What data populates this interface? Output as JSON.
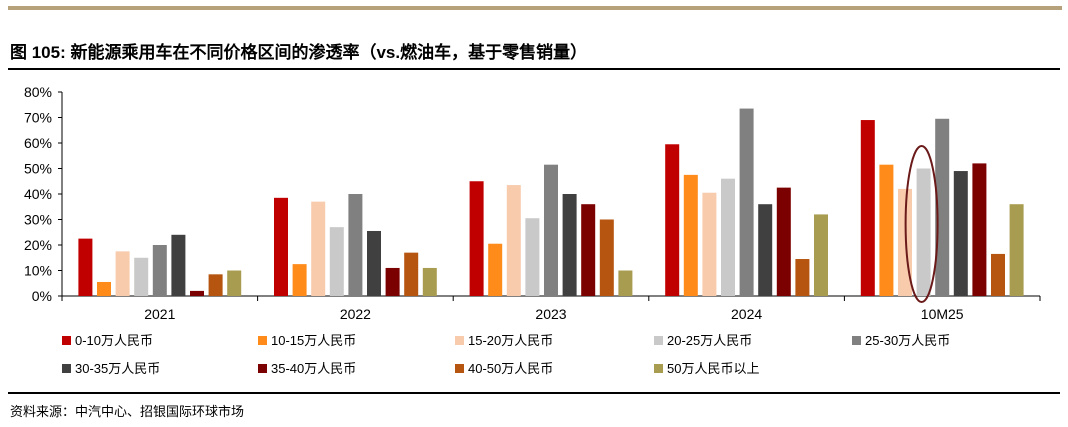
{
  "title": "图 105: 新能源乘用车在不同价格区间的渗透率（vs.燃油车，基于零售销量）",
  "source": "资料来源：中汽中心、招银国际环球市场",
  "chart_data": {
    "type": "bar",
    "categories": [
      "2021",
      "2022",
      "2023",
      "2024",
      "10M25"
    ],
    "ylim": [
      0,
      80
    ],
    "yticks": [
      "0%",
      "10%",
      "20%",
      "30%",
      "40%",
      "50%",
      "60%",
      "70%",
      "80%"
    ],
    "ytick_values": [
      0,
      10,
      20,
      30,
      40,
      50,
      60,
      70,
      80
    ],
    "highlight": {
      "category": "10M25",
      "series": "20-25万人民币",
      "shape": "ellipse",
      "color": "#6b1a1a"
    },
    "legend_position": "bottom",
    "series": [
      {
        "name": "0-10万人民币",
        "color": "#c00000",
        "values": [
          22.5,
          38.5,
          45,
          59.5,
          69
        ]
      },
      {
        "name": "10-15万人民币",
        "color": "#ff8c1a",
        "values": [
          5.5,
          12.5,
          20.5,
          47.5,
          51.5
        ]
      },
      {
        "name": "15-20万人民币",
        "color": "#f8cbad",
        "values": [
          17.5,
          37,
          43.5,
          40.5,
          42
        ]
      },
      {
        "name": "20-25万人民币",
        "color": "#c9c9c9",
        "values": [
          15,
          27,
          30.5,
          46,
          50
        ]
      },
      {
        "name": "25-30万人民币",
        "color": "#808080",
        "values": [
          20,
          40,
          51.5,
          73.5,
          69.5
        ]
      },
      {
        "name": "30-35万人民币",
        "color": "#404040",
        "values": [
          24,
          25.5,
          40,
          36,
          49
        ]
      },
      {
        "name": "35-40万人民币",
        "color": "#7b0000",
        "values": [
          2,
          11,
          36,
          42.5,
          52
        ]
      },
      {
        "name": "40-50万人民币",
        "color": "#b5550f",
        "values": [
          8.5,
          17,
          30,
          14.5,
          16.5
        ]
      },
      {
        "name": "50万人民币以上",
        "color": "#a89c50",
        "values": [
          10,
          11,
          10,
          32,
          36
        ]
      }
    ]
  }
}
